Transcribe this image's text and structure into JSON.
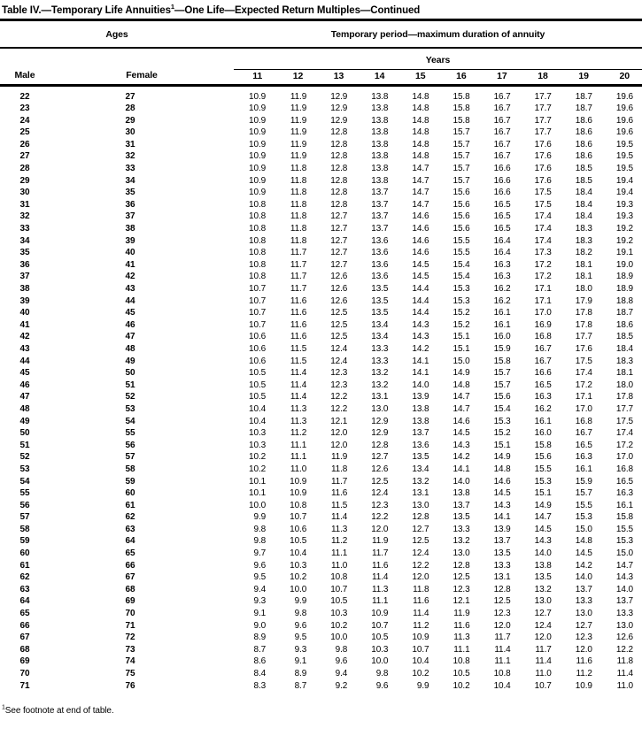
{
  "title": {
    "prefix": "Table IV.—Temporary Life Annuities",
    "sup": "1",
    "suffix": "—One Life—Expected Return Multiples—Continued"
  },
  "header": {
    "ages_label": "Ages",
    "period_label": "Temporary period—maximum duration of annuity",
    "years_label": "Years",
    "male_label": "Male",
    "female_label": "Female",
    "year_columns": [
      "11",
      "12",
      "13",
      "14",
      "15",
      "16",
      "17",
      "18",
      "19",
      "20"
    ]
  },
  "table": {
    "rows": [
      {
        "male": "22",
        "female": "27",
        "values": [
          "10.9",
          "11.9",
          "12.9",
          "13.8",
          "14.8",
          "15.8",
          "16.7",
          "17.7",
          "18.7",
          "19.6"
        ]
      },
      {
        "male": "23",
        "female": "28",
        "values": [
          "10.9",
          "11.9",
          "12.9",
          "13.8",
          "14.8",
          "15.8",
          "16.7",
          "17.7",
          "18.7",
          "19.6"
        ]
      },
      {
        "male": "24",
        "female": "29",
        "values": [
          "10.9",
          "11.9",
          "12.9",
          "13.8",
          "14.8",
          "15.8",
          "16.7",
          "17.7",
          "18.6",
          "19.6"
        ]
      },
      {
        "male": "25",
        "female": "30",
        "values": [
          "10.9",
          "11.9",
          "12.8",
          "13.8",
          "14.8",
          "15.7",
          "16.7",
          "17.7",
          "18.6",
          "19.6"
        ]
      },
      {
        "male": "26",
        "female": "31",
        "values": [
          "10.9",
          "11.9",
          "12.8",
          "13.8",
          "14.8",
          "15.7",
          "16.7",
          "17.6",
          "18.6",
          "19.5"
        ]
      },
      {
        "male": "27",
        "female": "32",
        "values": [
          "10.9",
          "11.9",
          "12.8",
          "13.8",
          "14.8",
          "15.7",
          "16.7",
          "17.6",
          "18.6",
          "19.5"
        ]
      },
      {
        "male": "28",
        "female": "33",
        "values": [
          "10.9",
          "11.8",
          "12.8",
          "13.8",
          "14.7",
          "15.7",
          "16.6",
          "17.6",
          "18.5",
          "19.5"
        ]
      },
      {
        "male": "29",
        "female": "34",
        "values": [
          "10.9",
          "11.8",
          "12.8",
          "13.8",
          "14.7",
          "15.7",
          "16.6",
          "17.6",
          "18.5",
          "19.4"
        ]
      },
      {
        "male": "30",
        "female": "35",
        "values": [
          "10.9",
          "11.8",
          "12.8",
          "13.7",
          "14.7",
          "15.6",
          "16.6",
          "17.5",
          "18.4",
          "19.4"
        ]
      },
      {
        "male": "31",
        "female": "36",
        "values": [
          "10.8",
          "11.8",
          "12.8",
          "13.7",
          "14.7",
          "15.6",
          "16.5",
          "17.5",
          "18.4",
          "19.3"
        ]
      },
      {
        "male": "32",
        "female": "37",
        "values": [
          "10.8",
          "11.8",
          "12.7",
          "13.7",
          "14.6",
          "15.6",
          "16.5",
          "17.4",
          "18.4",
          "19.3"
        ]
      },
      {
        "male": "33",
        "female": "38",
        "values": [
          "10.8",
          "11.8",
          "12.7",
          "13.7",
          "14.6",
          "15.6",
          "16.5",
          "17.4",
          "18.3",
          "19.2"
        ]
      },
      {
        "male": "34",
        "female": "39",
        "values": [
          "10.8",
          "11.8",
          "12.7",
          "13.6",
          "14.6",
          "15.5",
          "16.4",
          "17.4",
          "18.3",
          "19.2"
        ]
      },
      {
        "male": "35",
        "female": "40",
        "values": [
          "10.8",
          "11.7",
          "12.7",
          "13.6",
          "14.6",
          "15.5",
          "16.4",
          "17.3",
          "18.2",
          "19.1"
        ]
      },
      {
        "male": "36",
        "female": "41",
        "values": [
          "10.8",
          "11.7",
          "12.7",
          "13.6",
          "14.5",
          "15.4",
          "16.3",
          "17.2",
          "18.1",
          "19.0"
        ]
      },
      {
        "male": "37",
        "female": "42",
        "values": [
          "10.8",
          "11.7",
          "12.6",
          "13.6",
          "14.5",
          "15.4",
          "16.3",
          "17.2",
          "18.1",
          "18.9"
        ]
      },
      {
        "male": "38",
        "female": "43",
        "values": [
          "10.7",
          "11.7",
          "12.6",
          "13.5",
          "14.4",
          "15.3",
          "16.2",
          "17.1",
          "18.0",
          "18.9"
        ]
      },
      {
        "male": "39",
        "female": "44",
        "values": [
          "10.7",
          "11.6",
          "12.6",
          "13.5",
          "14.4",
          "15.3",
          "16.2",
          "17.1",
          "17.9",
          "18.8"
        ]
      },
      {
        "male": "40",
        "female": "45",
        "values": [
          "10.7",
          "11.6",
          "12.5",
          "13.5",
          "14.4",
          "15.2",
          "16.1",
          "17.0",
          "17.8",
          "18.7"
        ]
      },
      {
        "male": "41",
        "female": "46",
        "values": [
          "10.7",
          "11.6",
          "12.5",
          "13.4",
          "14.3",
          "15.2",
          "16.1",
          "16.9",
          "17.8",
          "18.6"
        ]
      },
      {
        "male": "42",
        "female": "47",
        "values": [
          "10.6",
          "11.6",
          "12.5",
          "13.4",
          "14.3",
          "15.1",
          "16.0",
          "16.8",
          "17.7",
          "18.5"
        ]
      },
      {
        "male": "43",
        "female": "48",
        "values": [
          "10.6",
          "11.5",
          "12.4",
          "13.3",
          "14.2",
          "15.1",
          "15.9",
          "16.7",
          "17.6",
          "18.4"
        ]
      },
      {
        "male": "44",
        "female": "49",
        "values": [
          "10.6",
          "11.5",
          "12.4",
          "13.3",
          "14.1",
          "15.0",
          "15.8",
          "16.7",
          "17.5",
          "18.3"
        ]
      },
      {
        "male": "45",
        "female": "50",
        "values": [
          "10.5",
          "11.4",
          "12.3",
          "13.2",
          "14.1",
          "14.9",
          "15.7",
          "16.6",
          "17.4",
          "18.1"
        ]
      },
      {
        "male": "46",
        "female": "51",
        "values": [
          "10.5",
          "11.4",
          "12.3",
          "13.2",
          "14.0",
          "14.8",
          "15.7",
          "16.5",
          "17.2",
          "18.0"
        ]
      },
      {
        "male": "47",
        "female": "52",
        "values": [
          "10.5",
          "11.4",
          "12.2",
          "13.1",
          "13.9",
          "14.7",
          "15.6",
          "16.3",
          "17.1",
          "17.8"
        ]
      },
      {
        "male": "48",
        "female": "53",
        "values": [
          "10.4",
          "11.3",
          "12.2",
          "13.0",
          "13.8",
          "14.7",
          "15.4",
          "16.2",
          "17.0",
          "17.7"
        ]
      },
      {
        "male": "49",
        "female": "54",
        "values": [
          "10.4",
          "11.3",
          "12.1",
          "12.9",
          "13.8",
          "14.6",
          "15.3",
          "16.1",
          "16.8",
          "17.5"
        ]
      },
      {
        "male": "50",
        "female": "55",
        "values": [
          "10.3",
          "11.2",
          "12.0",
          "12.9",
          "13.7",
          "14.5",
          "15.2",
          "16.0",
          "16.7",
          "17.4"
        ]
      },
      {
        "male": "51",
        "female": "56",
        "values": [
          "10.3",
          "11.1",
          "12.0",
          "12.8",
          "13.6",
          "14.3",
          "15.1",
          "15.8",
          "16.5",
          "17.2"
        ]
      },
      {
        "male": "52",
        "female": "57",
        "values": [
          "10.2",
          "11.1",
          "11.9",
          "12.7",
          "13.5",
          "14.2",
          "14.9",
          "15.6",
          "16.3",
          "17.0"
        ]
      },
      {
        "male": "53",
        "female": "58",
        "values": [
          "10.2",
          "11.0",
          "11.8",
          "12.6",
          "13.4",
          "14.1",
          "14.8",
          "15.5",
          "16.1",
          "16.8"
        ]
      },
      {
        "male": "54",
        "female": "59",
        "values": [
          "10.1",
          "10.9",
          "11.7",
          "12.5",
          "13.2",
          "14.0",
          "14.6",
          "15.3",
          "15.9",
          "16.5"
        ]
      },
      {
        "male": "55",
        "female": "60",
        "values": [
          "10.1",
          "10.9",
          "11.6",
          "12.4",
          "13.1",
          "13.8",
          "14.5",
          "15.1",
          "15.7",
          "16.3"
        ]
      },
      {
        "male": "56",
        "female": "61",
        "values": [
          "10.0",
          "10.8",
          "11.5",
          "12.3",
          "13.0",
          "13.7",
          "14.3",
          "14.9",
          "15.5",
          "16.1"
        ]
      },
      {
        "male": "57",
        "female": "62",
        "values": [
          "9.9",
          "10.7",
          "11.4",
          "12.2",
          "12.8",
          "13.5",
          "14.1",
          "14.7",
          "15.3",
          "15.8"
        ]
      },
      {
        "male": "58",
        "female": "63",
        "values": [
          "9.8",
          "10.6",
          "11.3",
          "12.0",
          "12.7",
          "13.3",
          "13.9",
          "14.5",
          "15.0",
          "15.5"
        ]
      },
      {
        "male": "59",
        "female": "64",
        "values": [
          "9.8",
          "10.5",
          "11.2",
          "11.9",
          "12.5",
          "13.2",
          "13.7",
          "14.3",
          "14.8",
          "15.3"
        ]
      },
      {
        "male": "60",
        "female": "65",
        "values": [
          "9.7",
          "10.4",
          "11.1",
          "11.7",
          "12.4",
          "13.0",
          "13.5",
          "14.0",
          "14.5",
          "15.0"
        ]
      },
      {
        "male": "61",
        "female": "66",
        "values": [
          "9.6",
          "10.3",
          "11.0",
          "11.6",
          "12.2",
          "12.8",
          "13.3",
          "13.8",
          "14.2",
          "14.7"
        ]
      },
      {
        "male": "62",
        "female": "67",
        "values": [
          "9.5",
          "10.2",
          "10.8",
          "11.4",
          "12.0",
          "12.5",
          "13.1",
          "13.5",
          "14.0",
          "14.3"
        ]
      },
      {
        "male": "63",
        "female": "68",
        "values": [
          "9.4",
          "10.0",
          "10.7",
          "11.3",
          "11.8",
          "12.3",
          "12.8",
          "13.2",
          "13.7",
          "14.0"
        ]
      },
      {
        "male": "64",
        "female": "69",
        "values": [
          "9.3",
          "9.9",
          "10.5",
          "11.1",
          "11.6",
          "12.1",
          "12.5",
          "13.0",
          "13.3",
          "13.7"
        ]
      },
      {
        "male": "65",
        "female": "70",
        "values": [
          "9.1",
          "9.8",
          "10.3",
          "10.9",
          "11.4",
          "11.9",
          "12.3",
          "12.7",
          "13.0",
          "13.3"
        ]
      },
      {
        "male": "66",
        "female": "71",
        "values": [
          "9.0",
          "9.6",
          "10.2",
          "10.7",
          "11.2",
          "11.6",
          "12.0",
          "12.4",
          "12.7",
          "13.0"
        ]
      },
      {
        "male": "67",
        "female": "72",
        "values": [
          "8.9",
          "9.5",
          "10.0",
          "10.5",
          "10.9",
          "11.3",
          "11.7",
          "12.0",
          "12.3",
          "12.6"
        ]
      },
      {
        "male": "68",
        "female": "73",
        "values": [
          "8.7",
          "9.3",
          "9.8",
          "10.3",
          "10.7",
          "11.1",
          "11.4",
          "11.7",
          "12.0",
          "12.2"
        ]
      },
      {
        "male": "69",
        "female": "74",
        "values": [
          "8.6",
          "9.1",
          "9.6",
          "10.0",
          "10.4",
          "10.8",
          "11.1",
          "11.4",
          "11.6",
          "11.8"
        ]
      },
      {
        "male": "70",
        "female": "75",
        "values": [
          "8.4",
          "8.9",
          "9.4",
          "9.8",
          "10.2",
          "10.5",
          "10.8",
          "11.0",
          "11.2",
          "11.4"
        ]
      },
      {
        "male": "71",
        "female": "76",
        "values": [
          "8.3",
          "8.7",
          "9.2",
          "9.6",
          "9.9",
          "10.2",
          "10.4",
          "10.7",
          "10.9",
          "11.0"
        ]
      }
    ]
  },
  "footnote": {
    "sup": "1",
    "text": "See footnote at end of table."
  },
  "colors": {
    "text": "#000000",
    "background": "#ffffff",
    "rule": "#000000"
  }
}
